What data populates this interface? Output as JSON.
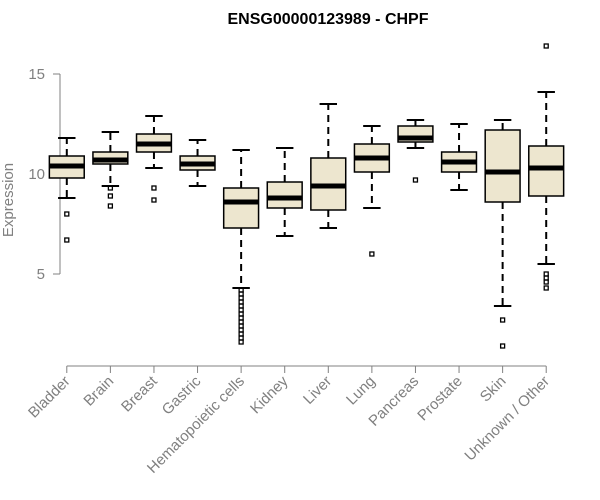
{
  "chart_data": {
    "type": "boxplot",
    "title": "ENSG00000123989 - CHPF",
    "xlabel": "",
    "ylabel": "Expression",
    "ylim": [
      0.4,
      16.6
    ],
    "yticks": [
      5,
      10,
      15
    ],
    "grid": false,
    "box_color": "#ede6cf",
    "categories": [
      "Bladder",
      "Brain",
      "Breast",
      "Gastric",
      "Hematopoietic cells",
      "Kidney",
      "Liver",
      "Lung",
      "Pancreas",
      "Prostate",
      "Skin",
      "Unknown / Other"
    ],
    "boxes": [
      {
        "name": "Bladder",
        "whislo": 8.8,
        "q1": 9.8,
        "med": 10.4,
        "q3": 10.9,
        "whishi": 11.8,
        "fliers": [
          8.0,
          6.7
        ]
      },
      {
        "name": "Brain",
        "whislo": 9.4,
        "q1": 10.5,
        "med": 10.7,
        "q3": 11.1,
        "whishi": 12.1,
        "fliers": [
          9.3,
          8.9,
          8.4
        ]
      },
      {
        "name": "Breast",
        "whislo": 10.3,
        "q1": 11.1,
        "med": 11.5,
        "q3": 12.0,
        "whishi": 12.9,
        "fliers": [
          9.3,
          8.7
        ]
      },
      {
        "name": "Gastric",
        "whislo": 9.4,
        "q1": 10.2,
        "med": 10.5,
        "q3": 10.9,
        "whishi": 11.7,
        "fliers": []
      },
      {
        "name": "Hematopoietic cells",
        "whislo": 4.3,
        "q1": 7.3,
        "med": 8.6,
        "q3": 9.3,
        "whishi": 11.2,
        "fliers": [
          4.2,
          4.0,
          3.8,
          3.6,
          3.4,
          3.2,
          3.0,
          2.8,
          2.6,
          2.4,
          2.2,
          2.0,
          1.8,
          1.6
        ]
      },
      {
        "name": "Kidney",
        "whislo": 6.9,
        "q1": 8.3,
        "med": 8.8,
        "q3": 9.6,
        "whishi": 11.3,
        "fliers": []
      },
      {
        "name": "Liver",
        "whislo": 7.3,
        "q1": 8.2,
        "med": 9.4,
        "q3": 10.8,
        "whishi": 13.5,
        "fliers": []
      },
      {
        "name": "Lung",
        "whislo": 8.3,
        "q1": 10.1,
        "med": 10.8,
        "q3": 11.5,
        "whishi": 12.4,
        "fliers": [
          6.0
        ]
      },
      {
        "name": "Pancreas",
        "whislo": 11.3,
        "q1": 11.6,
        "med": 11.8,
        "q3": 12.4,
        "whishi": 12.7,
        "fliers": [
          9.7
        ]
      },
      {
        "name": "Prostate",
        "whislo": 9.2,
        "q1": 10.1,
        "med": 10.6,
        "q3": 11.1,
        "whishi": 12.5,
        "fliers": []
      },
      {
        "name": "Skin",
        "whislo": 3.4,
        "q1": 8.6,
        "med": 10.1,
        "q3": 12.2,
        "whishi": 12.7,
        "fliers": [
          2.7,
          1.4
        ]
      },
      {
        "name": "Unknown / Other",
        "whislo": 5.5,
        "q1": 8.9,
        "med": 10.3,
        "q3": 11.4,
        "whishi": 14.1,
        "fliers": [
          16.4,
          5.0,
          4.8,
          4.6,
          4.3
        ]
      }
    ]
  }
}
